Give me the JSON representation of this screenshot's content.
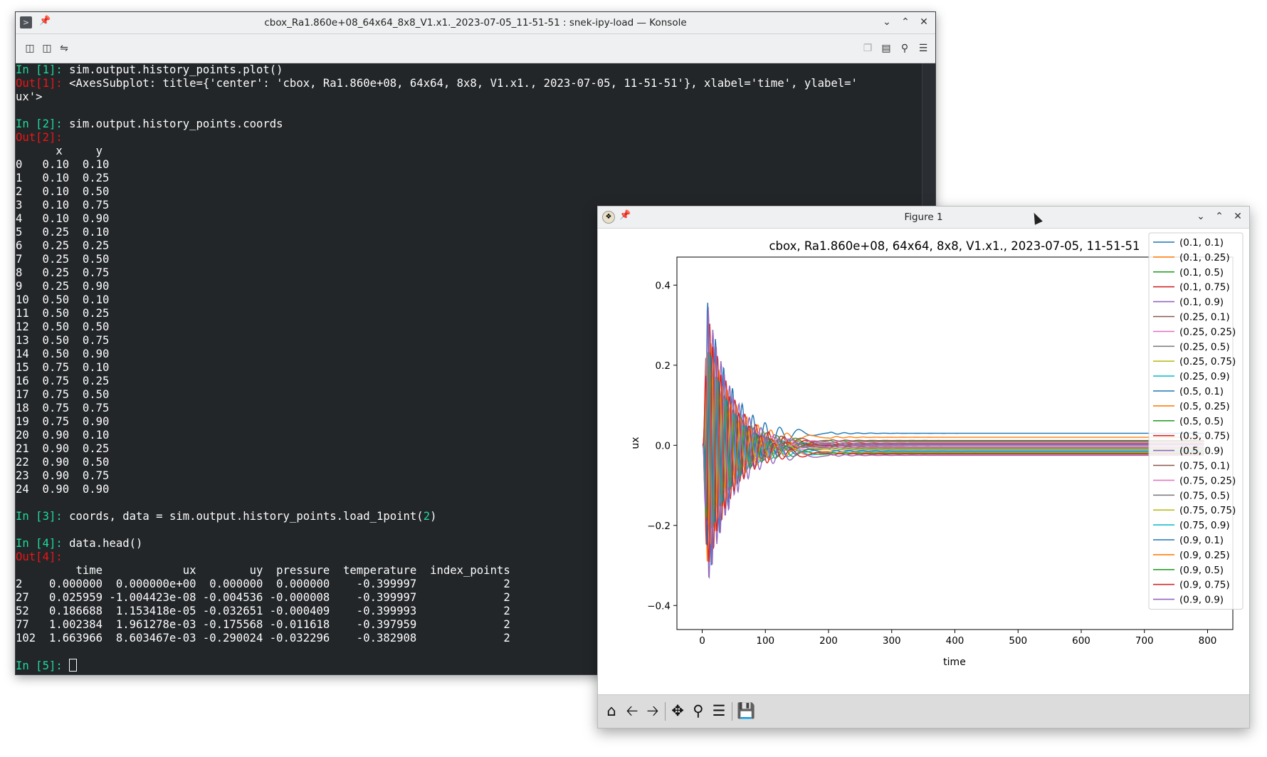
{
  "konsole": {
    "title": "cbox_Ra1.860e+08_64x64_8x8_V1.x1._2023-07-05_11-51-51 : snek-ipy-load — Konsole",
    "toolbar_icons": [
      "new-tab-icon",
      "split-view-icon",
      "settings-icon",
      "copy-icon",
      "paste-icon",
      "find-icon",
      "hamburger-menu-icon"
    ]
  },
  "terminal": {
    "lines": [
      {
        "type": "in",
        "n": "1",
        "text": " sim.output.history_points.plot()"
      },
      {
        "type": "out",
        "n": "1",
        "text": " <AxesSubplot: title={'center': 'cbox, Ra1.860e+08, 64x64, 8x8, V1.x1., 2023-07-05, 11-51-51'}, xlabel='time', ylabel='"
      },
      {
        "type": "plain",
        "text": "ux'>"
      },
      {
        "type": "blank"
      },
      {
        "type": "in",
        "n": "2",
        "text": " sim.output.history_points.coords"
      },
      {
        "type": "out",
        "n": "2",
        "text": ""
      },
      {
        "type": "plain",
        "text": "      x     y"
      },
      {
        "type": "plain",
        "text": "0   0.10  0.10"
      },
      {
        "type": "plain",
        "text": "1   0.10  0.25"
      },
      {
        "type": "plain",
        "text": "2   0.10  0.50"
      },
      {
        "type": "plain",
        "text": "3   0.10  0.75"
      },
      {
        "type": "plain",
        "text": "4   0.10  0.90"
      },
      {
        "type": "plain",
        "text": "5   0.25  0.10"
      },
      {
        "type": "plain",
        "text": "6   0.25  0.25"
      },
      {
        "type": "plain",
        "text": "7   0.25  0.50"
      },
      {
        "type": "plain",
        "text": "8   0.25  0.75"
      },
      {
        "type": "plain",
        "text": "9   0.25  0.90"
      },
      {
        "type": "plain",
        "text": "10  0.50  0.10"
      },
      {
        "type": "plain",
        "text": "11  0.50  0.25"
      },
      {
        "type": "plain",
        "text": "12  0.50  0.50"
      },
      {
        "type": "plain",
        "text": "13  0.50  0.75"
      },
      {
        "type": "plain",
        "text": "14  0.50  0.90"
      },
      {
        "type": "plain",
        "text": "15  0.75  0.10"
      },
      {
        "type": "plain",
        "text": "16  0.75  0.25"
      },
      {
        "type": "plain",
        "text": "17  0.75  0.50"
      },
      {
        "type": "plain",
        "text": "18  0.75  0.75"
      },
      {
        "type": "plain",
        "text": "19  0.75  0.90"
      },
      {
        "type": "plain",
        "text": "20  0.90  0.10"
      },
      {
        "type": "plain",
        "text": "21  0.90  0.25"
      },
      {
        "type": "plain",
        "text": "22  0.90  0.50"
      },
      {
        "type": "plain",
        "text": "23  0.90  0.75"
      },
      {
        "type": "plain",
        "text": "24  0.90  0.90"
      },
      {
        "type": "blank"
      },
      {
        "type": "in",
        "n": "3",
        "text": " coords, data = sim.output.history_points.load_1point(",
        "arg": "2",
        "tail": ")"
      },
      {
        "type": "blank"
      },
      {
        "type": "in",
        "n": "4",
        "text": " data.head()"
      },
      {
        "type": "out",
        "n": "4",
        "text": ""
      },
      {
        "type": "plain",
        "text": "         time            ux        uy  pressure  temperature  index_points"
      },
      {
        "type": "plain",
        "text": "2    0.000000  0.000000e+00  0.000000  0.000000    -0.399997             2"
      },
      {
        "type": "plain",
        "text": "27   0.025959 -1.004423e-08 -0.004536 -0.000008    -0.399997             2"
      },
      {
        "type": "plain",
        "text": "52   0.186688  1.153418e-05 -0.032651 -0.000409    -0.399993             2"
      },
      {
        "type": "plain",
        "text": "77   1.002384  1.961278e-03 -0.175568 -0.011618    -0.397959             2"
      },
      {
        "type": "plain",
        "text": "102  1.663966  8.603467e-03 -0.290024 -0.032296    -0.382908             2"
      },
      {
        "type": "blank"
      },
      {
        "type": "in",
        "n": "5",
        "text": " ",
        "cursor": true
      }
    ]
  },
  "figure": {
    "window_title": "Figure 1",
    "nav_icons": [
      "home-icon",
      "back-arrow-icon",
      "forward-arrow-icon",
      "pan-icon",
      "zoom-icon",
      "configure-subplots-icon",
      "save-icon"
    ]
  },
  "chart_data": {
    "type": "line",
    "title": "cbox, Ra1.860e+08, 64x64, 8x8, V1.x1., 2023-07-05, 11-51-51",
    "xlabel": "time",
    "ylabel": "ux",
    "xlim": [
      -40,
      840
    ],
    "ylim": [
      -0.46,
      0.47
    ],
    "xticks": [
      0,
      100,
      200,
      300,
      400,
      500,
      600,
      700,
      800
    ],
    "yticks": [
      -0.4,
      -0.2,
      0.0,
      0.2,
      0.4
    ],
    "ytick_labels": [
      "−0.4",
      "−0.2",
      "0.0",
      "0.2",
      "0.4"
    ],
    "grid": false,
    "legend_position": "top-right",
    "series": [
      {
        "name": "(0.1, 0.1)",
        "color": "#1f77b4",
        "final": 0.03,
        "amp": 0.42,
        "phase": 0.0
      },
      {
        "name": "(0.1, 0.25)",
        "color": "#ff7f0e",
        "final": 0.02,
        "amp": 0.34,
        "phase": 0.5
      },
      {
        "name": "(0.1, 0.5)",
        "color": "#2ca02c",
        "final": 0.01,
        "amp": 0.3,
        "phase": 1.0
      },
      {
        "name": "(0.1, 0.75)",
        "color": "#d62728",
        "final": 0.005,
        "amp": 0.39,
        "phase": 1.5
      },
      {
        "name": "(0.1, 0.9)",
        "color": "#9467bd",
        "final": 0.002,
        "amp": 0.42,
        "phase": 2.0
      },
      {
        "name": "(0.25, 0.1)",
        "color": "#8c564b",
        "final": 0.012,
        "amp": 0.28,
        "phase": 2.5
      },
      {
        "name": "(0.25, 0.25)",
        "color": "#e377c2",
        "final": 0.008,
        "amp": 0.26,
        "phase": 3.0
      },
      {
        "name": "(0.25, 0.5)",
        "color": "#7f7f7f",
        "final": 0.004,
        "amp": 0.22,
        "phase": 3.5
      },
      {
        "name": "(0.25, 0.75)",
        "color": "#bcbd22",
        "final": 0.0,
        "amp": 0.24,
        "phase": 4.0
      },
      {
        "name": "(0.25, 0.9)",
        "color": "#17becf",
        "final": -0.012,
        "amp": 0.3,
        "phase": 4.5
      },
      {
        "name": "(0.5, 0.1)",
        "color": "#1f77b4",
        "final": 0.0,
        "amp": 0.25,
        "phase": 5.0
      },
      {
        "name": "(0.5, 0.25)",
        "color": "#ff7f0e",
        "final": 0.0,
        "amp": 0.22,
        "phase": 5.5
      },
      {
        "name": "(0.5, 0.5)",
        "color": "#2ca02c",
        "final": 0.0,
        "amp": 0.2,
        "phase": 6.0
      },
      {
        "name": "(0.5, 0.75)",
        "color": "#d62728",
        "final": 0.0,
        "amp": 0.22,
        "phase": 0.3
      },
      {
        "name": "(0.5, 0.9)",
        "color": "#9467bd",
        "final": 0.0,
        "amp": 0.26,
        "phase": 0.8
      },
      {
        "name": "(0.75, 0.1)",
        "color": "#8c564b",
        "final": -0.004,
        "amp": 0.26,
        "phase": 1.3
      },
      {
        "name": "(0.75, 0.25)",
        "color": "#e377c2",
        "final": -0.006,
        "amp": 0.24,
        "phase": 1.8
      },
      {
        "name": "(0.75, 0.5)",
        "color": "#7f7f7f",
        "final": -0.008,
        "amp": 0.22,
        "phase": 2.3
      },
      {
        "name": "(0.75, 0.75)",
        "color": "#bcbd22",
        "final": -0.01,
        "amp": 0.24,
        "phase": 2.8
      },
      {
        "name": "(0.75, 0.9)",
        "color": "#17becf",
        "final": -0.02,
        "amp": 0.28,
        "phase": 3.3
      },
      {
        "name": "(0.9, 0.1)",
        "color": "#1f77b4",
        "final": -0.015,
        "amp": 0.3,
        "phase": 3.8
      },
      {
        "name": "(0.9, 0.25)",
        "color": "#ff7f0e",
        "final": -0.018,
        "amp": 0.32,
        "phase": 4.3
      },
      {
        "name": "(0.9, 0.5)",
        "color": "#2ca02c",
        "final": -0.02,
        "amp": 0.3,
        "phase": 4.8
      },
      {
        "name": "(0.9, 0.75)",
        "color": "#d62728",
        "final": -0.022,
        "amp": 0.36,
        "phase": 5.3
      },
      {
        "name": "(0.9, 0.9)",
        "color": "#9467bd",
        "final": -0.025,
        "amp": 0.42,
        "phase": 5.8
      }
    ]
  }
}
